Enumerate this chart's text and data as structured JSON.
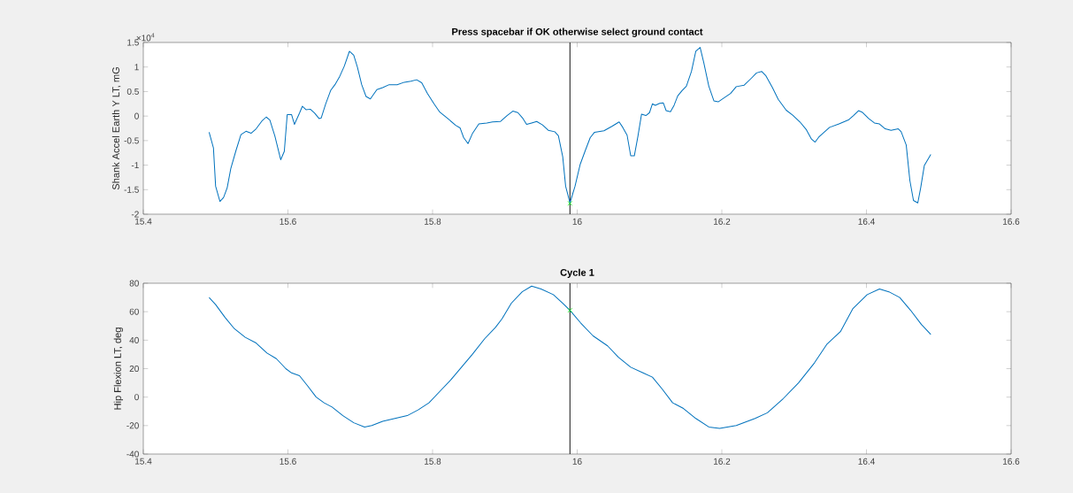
{
  "chart_data": [
    {
      "type": "line",
      "title": "Press spacebar if OK otherwise select ground contact",
      "ylabel": "Shank Accel Earth Y LT, mG",
      "annotations": [
        "×10$^{4}$"
      ],
      "xlim": [
        15.4,
        16.6
      ],
      "xticks": [
        15.4,
        15.6,
        15.8,
        16,
        16.2,
        16.4,
        16.6
      ],
      "ylim": [
        -2,
        1.5
      ],
      "yticks": [
        -2,
        -1.5,
        -1,
        -0.5,
        0,
        0.5,
        1,
        1.5
      ],
      "ref_lines": [
        {
          "axis": "x",
          "value": 15.99,
          "color": "#262626"
        }
      ],
      "series": [
        {
          "color": "#0072bd",
          "x": [
            15.491,
            15.497,
            15.5,
            15.506,
            15.511,
            15.516,
            15.521,
            15.528,
            15.535,
            15.542,
            15.549,
            15.556,
            15.564,
            15.57,
            15.575,
            15.582,
            15.59,
            15.595,
            15.599,
            15.605,
            15.609,
            15.616,
            15.62,
            15.625,
            15.631,
            15.637,
            15.643,
            15.646,
            15.652,
            15.659,
            15.665,
            15.671,
            15.678,
            15.685,
            15.691,
            15.696,
            15.702,
            15.708,
            15.714,
            15.723,
            15.731,
            15.74,
            15.751,
            15.761,
            15.77,
            15.778,
            15.785,
            15.793,
            15.802,
            15.81,
            15.821,
            15.832,
            15.838,
            15.843,
            15.849,
            15.855,
            15.864,
            15.875,
            15.883,
            15.894,
            15.903,
            15.911,
            15.918,
            15.925,
            15.93,
            15.937,
            15.944,
            15.952,
            15.96,
            15.969,
            15.974,
            15.98,
            15.984,
            15.99,
            15.997,
            16.004,
            16.011,
            16.018,
            16.024,
            16.037,
            16.048,
            16.058,
            16.063,
            16.069,
            16.074,
            16.079,
            16.084,
            16.089,
            16.095,
            16.1,
            16.104,
            16.108,
            16.114,
            16.119,
            16.123,
            16.129,
            16.134,
            16.139,
            16.145,
            16.151,
            16.158,
            16.164,
            16.17,
            16.175,
            16.182,
            16.189,
            16.195,
            16.203,
            16.212,
            16.22,
            16.231,
            16.24,
            16.248,
            16.255,
            16.261,
            16.27,
            16.278,
            16.289,
            16.298,
            16.308,
            16.317,
            16.324,
            16.329,
            16.334,
            16.349,
            16.362,
            16.375,
            16.382,
            16.389,
            16.394,
            16.403,
            16.411,
            16.418,
            16.426,
            16.434,
            16.444,
            16.448,
            16.455,
            16.46,
            16.465,
            16.471,
            16.475,
            16.48,
            16.489
          ],
          "values": [
            -0.33,
            -0.65,
            -1.43,
            -1.74,
            -1.66,
            -1.46,
            -1.07,
            -0.71,
            -0.38,
            -0.31,
            -0.35,
            -0.26,
            -0.1,
            -0.02,
            -0.08,
            -0.41,
            -0.89,
            -0.72,
            0.03,
            0.03,
            -0.17,
            0.06,
            0.2,
            0.13,
            0.14,
            0.06,
            -0.05,
            -0.04,
            0.24,
            0.52,
            0.64,
            0.79,
            1.02,
            1.32,
            1.24,
            1.0,
            0.64,
            0.4,
            0.35,
            0.54,
            0.58,
            0.64,
            0.64,
            0.69,
            0.71,
            0.74,
            0.68,
            0.46,
            0.25,
            0.08,
            -0.05,
            -0.19,
            -0.24,
            -0.44,
            -0.56,
            -0.36,
            -0.16,
            -0.14,
            -0.12,
            -0.11,
            0.01,
            0.1,
            0.07,
            -0.05,
            -0.17,
            -0.14,
            -0.11,
            -0.18,
            -0.29,
            -0.32,
            -0.4,
            -0.83,
            -1.43,
            -1.77,
            -1.43,
            -0.99,
            -0.71,
            -0.44,
            -0.33,
            -0.3,
            -0.21,
            -0.12,
            -0.23,
            -0.39,
            -0.81,
            -0.81,
            -0.41,
            0.04,
            0.01,
            0.07,
            0.25,
            0.22,
            0.26,
            0.27,
            0.11,
            0.09,
            0.22,
            0.41,
            0.52,
            0.61,
            0.91,
            1.32,
            1.4,
            1.09,
            0.61,
            0.31,
            0.29,
            0.37,
            0.46,
            0.6,
            0.63,
            0.76,
            0.88,
            0.91,
            0.82,
            0.58,
            0.34,
            0.12,
            0.02,
            -0.12,
            -0.28,
            -0.47,
            -0.53,
            -0.43,
            -0.23,
            -0.16,
            -0.08,
            0.01,
            0.11,
            0.08,
            -0.05,
            -0.14,
            -0.16,
            -0.26,
            -0.29,
            -0.26,
            -0.32,
            -0.59,
            -1.31,
            -1.72,
            -1.77,
            -1.46,
            -1.01,
            -0.78
          ]
        },
        {
          "type": "scatter",
          "color": "#00ff00",
          "marker": "cross",
          "x": [
            15.99
          ],
          "values": [
            -1.78
          ]
        }
      ]
    },
    {
      "type": "line",
      "title": "Cycle 1",
      "ylabel": "Hip Flexion LT, deg",
      "xlim": [
        15.4,
        16.6
      ],
      "xticks": [
        15.4,
        15.6,
        15.8,
        16,
        16.2,
        16.4,
        16.6
      ],
      "ylim": [
        -40,
        80
      ],
      "yticks": [
        -40,
        -20,
        0,
        20,
        40,
        60,
        80
      ],
      "ref_lines": [
        {
          "axis": "x",
          "value": 15.99,
          "color": "#262626"
        }
      ],
      "series": [
        {
          "color": "#0072bd",
          "x": [
            15.491,
            15.5,
            15.513,
            15.526,
            15.541,
            15.556,
            15.571,
            15.584,
            15.597,
            15.605,
            15.616,
            15.627,
            15.639,
            15.65,
            15.661,
            15.676,
            15.691,
            15.706,
            15.716,
            15.731,
            15.748,
            15.765,
            15.78,
            15.795,
            15.81,
            15.825,
            15.84,
            15.855,
            15.872,
            15.887,
            15.896,
            15.909,
            15.924,
            15.937,
            15.95,
            15.967,
            15.98,
            15.99,
            16.005,
            16.022,
            16.042,
            16.057,
            16.074,
            16.091,
            16.104,
            16.117,
            16.132,
            16.147,
            16.164,
            16.182,
            16.197,
            16.22,
            16.246,
            16.263,
            16.285,
            16.306,
            16.328,
            16.345,
            16.364,
            16.381,
            16.401,
            16.418,
            16.431,
            16.446,
            16.461,
            16.476,
            16.489
          ],
          "values": [
            70,
            65,
            56,
            48,
            42,
            38,
            31,
            27,
            20,
            17,
            15,
            8,
            0,
            -4,
            -7,
            -13,
            -18,
            -21,
            -20,
            -17,
            -15,
            -13,
            -9,
            -4,
            4,
            12,
            21,
            30,
            41,
            49,
            55,
            66,
            74,
            78,
            76,
            72,
            66,
            61,
            52,
            43,
            36,
            28,
            21,
            17,
            14,
            6,
            -4,
            -8,
            -15,
            -21,
            -22,
            -20,
            -15,
            -11,
            -1,
            10,
            24,
            37,
            46,
            62,
            72,
            76,
            74,
            70,
            61,
            51,
            44
          ]
        },
        {
          "type": "scatter",
          "color": "#00ff00",
          "marker": "cross",
          "x": [
            15.99
          ],
          "values": [
            61
          ]
        }
      ]
    }
  ]
}
